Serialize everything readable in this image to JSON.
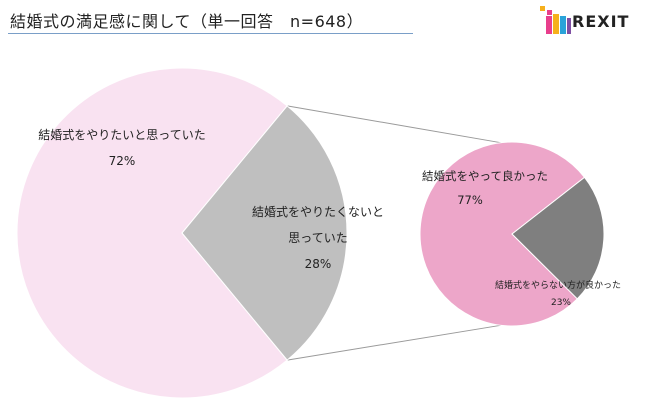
{
  "header": {
    "title": "結婚式の満足感に関して（単一回答　n=648）",
    "logo_text": "REXIT"
  },
  "colors": {
    "main_wanted": "#f9e2f1",
    "main_not_wanted": "#bfbfbf",
    "sub_good": "#eda6c9",
    "sub_rather_not": "#7f7f7f",
    "connector": "#9a9a9a",
    "logo_blocks": [
      "#e83e8c",
      "#f6b01c",
      "#2aa3d9",
      "#7f4fa3"
    ]
  },
  "chart_data": [
    {
      "type": "pie",
      "slices": [
        {
          "label_lines": [
            "結婚式をやりたいと思っていた"
          ],
          "value": 72,
          "value_label": "72%",
          "color": "#f9e2f1"
        },
        {
          "label_lines": [
            "結婚式をやりたくないと",
            "思っていた"
          ],
          "value": 28,
          "value_label": "28%",
          "color": "#bfbfbf"
        }
      ]
    },
    {
      "type": "pie",
      "slices": [
        {
          "label_lines": [
            "結婚式をやって良かった"
          ],
          "value": 77,
          "value_label": "77%",
          "color": "#eda6c9"
        },
        {
          "label_lines": [
            "結婚式をやらない方が良かった"
          ],
          "value": 23,
          "value_label": "23%",
          "color": "#7f7f7f"
        }
      ]
    }
  ]
}
